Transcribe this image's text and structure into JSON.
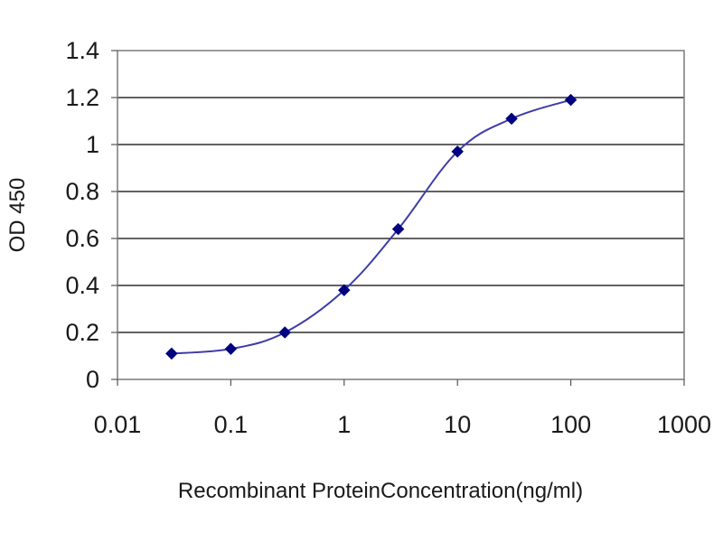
{
  "chart_data": {
    "type": "line",
    "title": "",
    "xlabel": "Recombinant ProteinConcentration(ng/ml)",
    "ylabel": "OD 450",
    "x_scale": "log",
    "xlim": [
      0.01,
      1000
    ],
    "ylim": [
      0,
      1.4
    ],
    "grid": true,
    "x_tick_labels": [
      "0.01",
      "0.1",
      "1",
      "10",
      "100",
      "1000"
    ],
    "y_tick_labels": [
      "0",
      "0.2",
      "0.4",
      "0.6",
      "0.8",
      "1",
      "1.2",
      "1.4"
    ],
    "series": [
      {
        "x": [
          0.03,
          0.1,
          0.3,
          1,
          3,
          10,
          30,
          100
        ],
        "y": [
          0.11,
          0.13,
          0.2,
          0.38,
          0.64,
          0.97,
          1.11,
          1.19
        ]
      }
    ],
    "colors": {
      "line": "#3d3da8",
      "marker": "#000080",
      "gridline": "#2f2f2f",
      "plot_border": "#7a7a7a"
    }
  }
}
